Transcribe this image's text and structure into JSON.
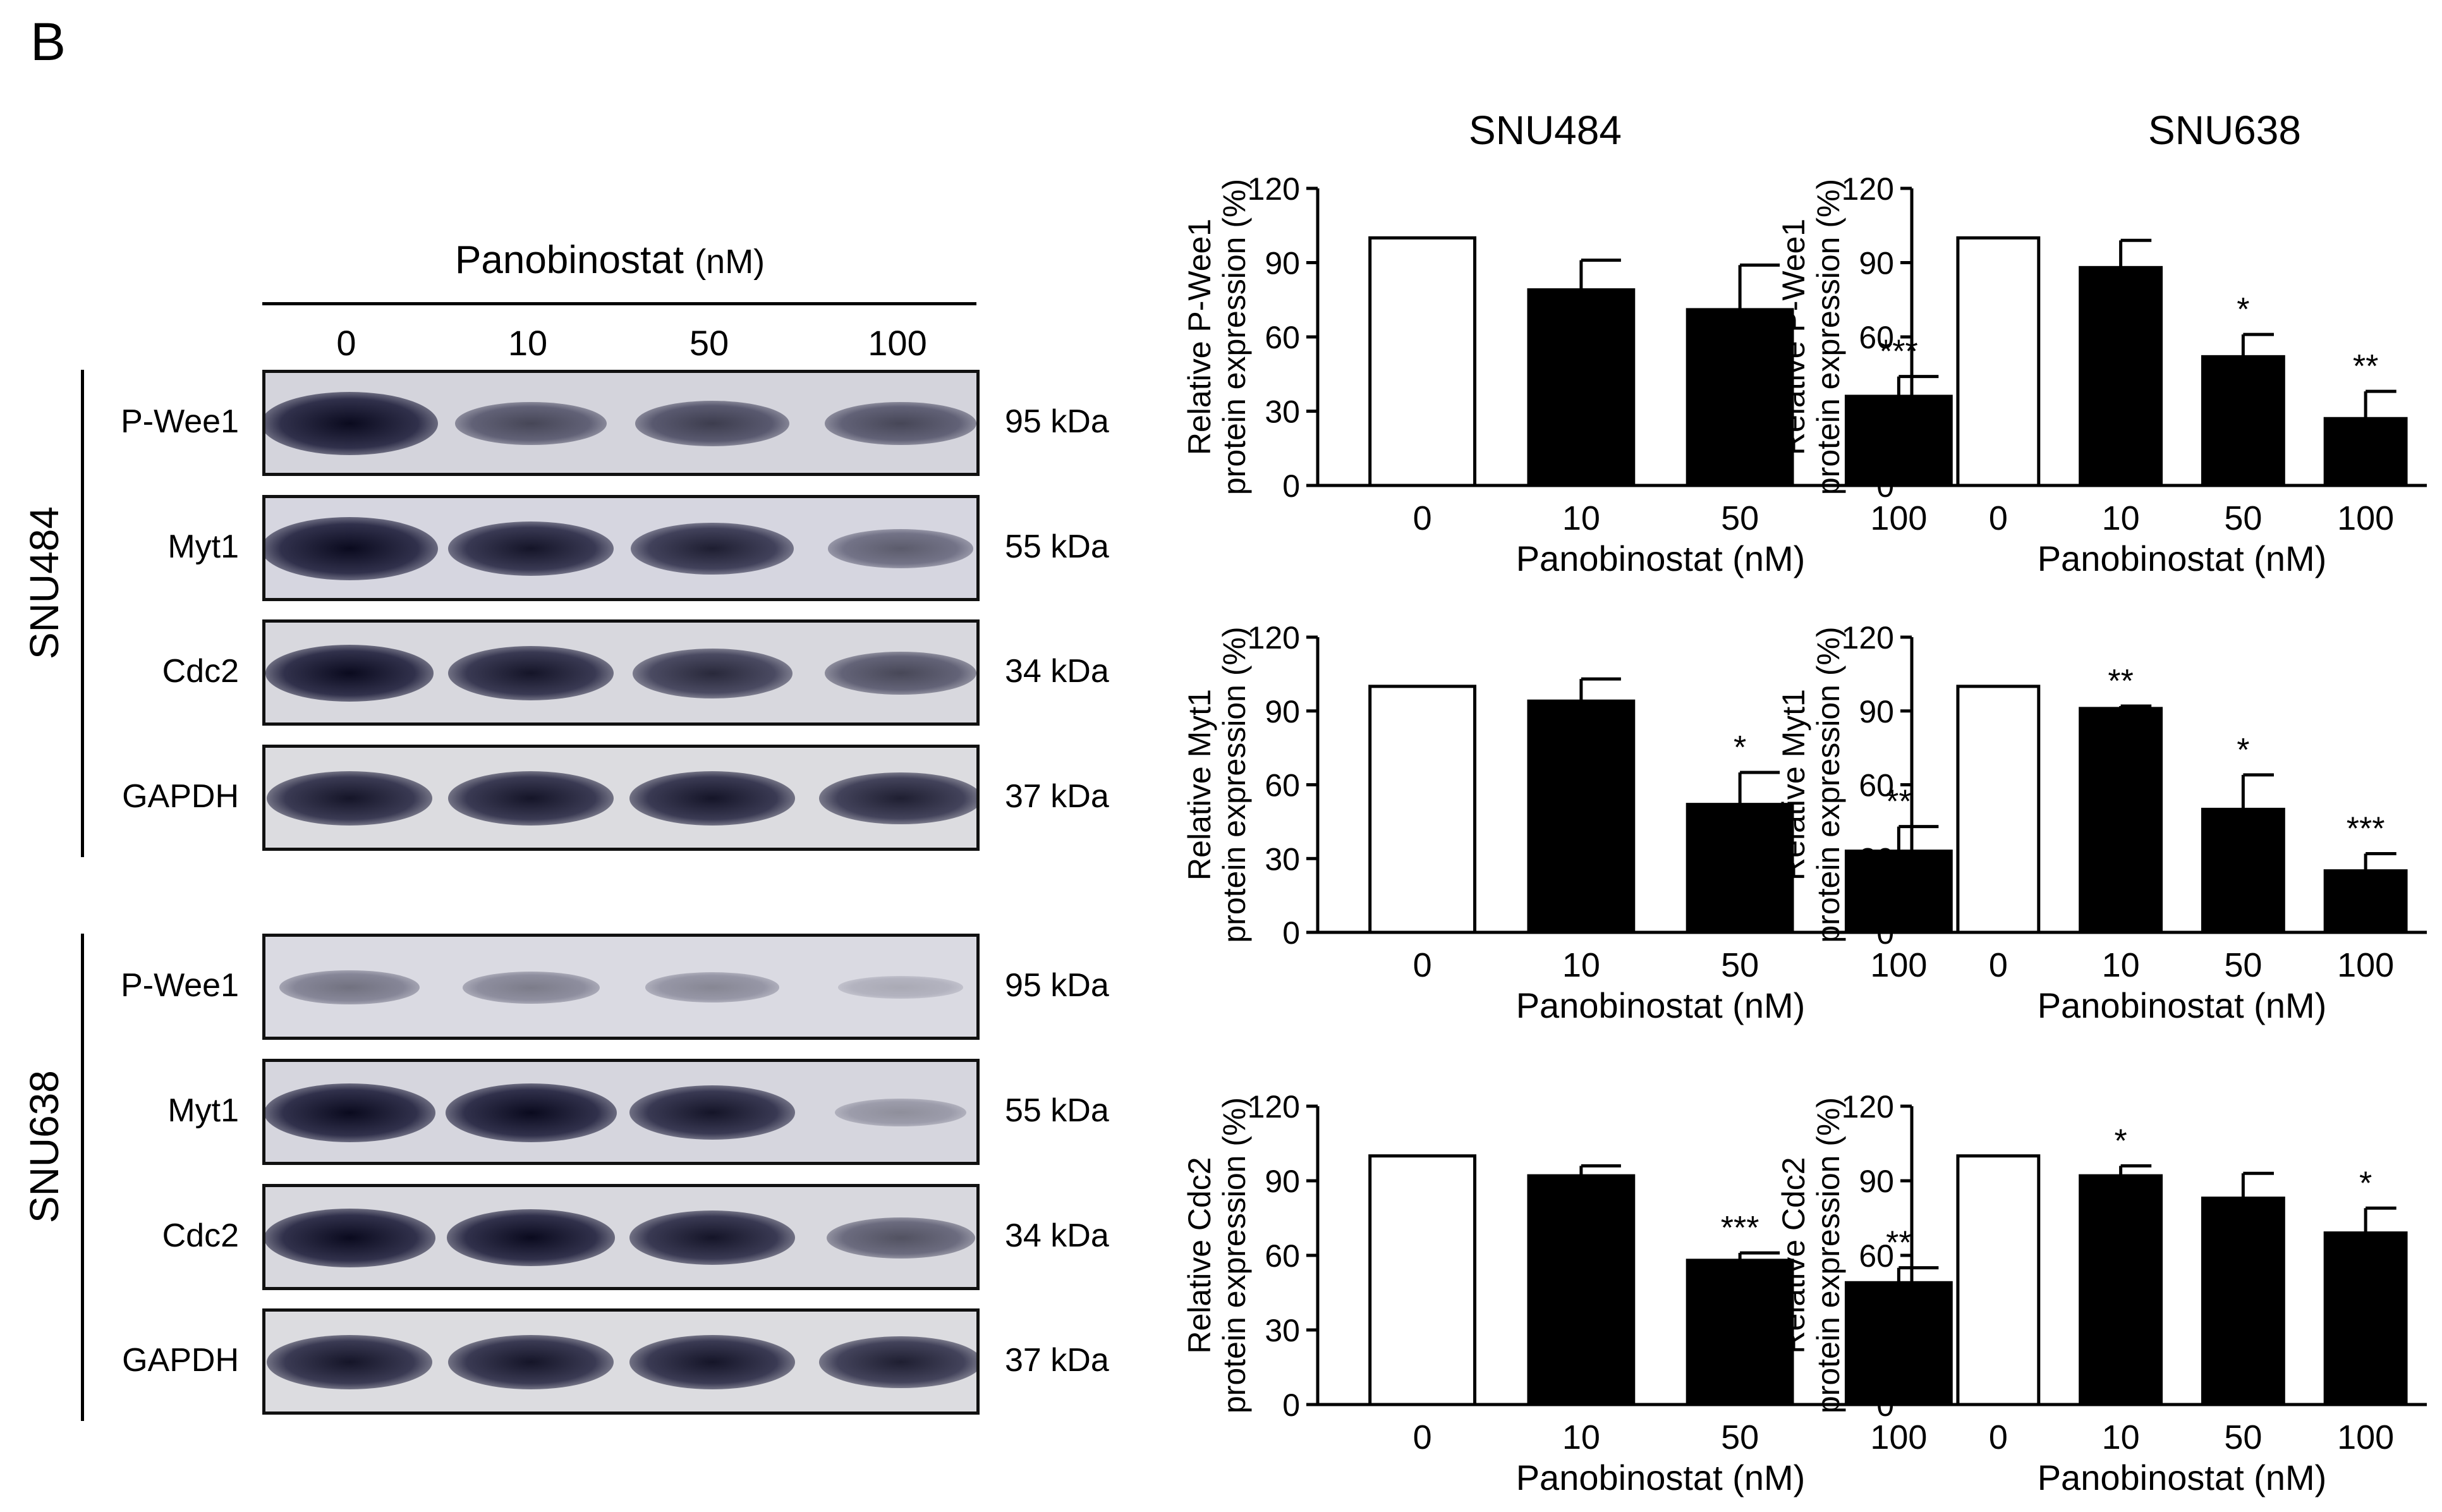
{
  "panel_label": "B",
  "blot": {
    "title": "Panobinostat",
    "title_unit": "(nM)",
    "lanes": [
      "0",
      "10",
      "50",
      "100"
    ],
    "groups": [
      {
        "cell_line": "SNU484",
        "rows": [
          {
            "protein": "P-Wee1",
            "size": "95 kDa",
            "intensity": [
              1.0,
              0.55,
              0.6,
              0.55
            ],
            "bg": "#d4d4dc"
          },
          {
            "protein": "Myt1",
            "size": "55 kDa",
            "intensity": [
              1.0,
              0.8,
              0.75,
              0.45
            ],
            "bg": "#d6d6e0"
          },
          {
            "protein": "Cdc2",
            "size": "34 kDa",
            "intensity": [
              0.85,
              0.8,
              0.7,
              0.55
            ],
            "bg": "#d8d8de"
          },
          {
            "protein": "GAPDH",
            "size": "37 kDa",
            "intensity": [
              0.8,
              0.8,
              0.8,
              0.75
            ],
            "bg": "#dcdce0"
          }
        ]
      },
      {
        "cell_line": "SNU638",
        "rows": [
          {
            "protein": "P-Wee1",
            "size": "95 kDa",
            "intensity": [
              0.35,
              0.3,
              0.25,
              0.08
            ],
            "bg": "#dadae2"
          },
          {
            "protein": "Myt1",
            "size": "55 kDa",
            "intensity": [
              0.9,
              0.9,
              0.8,
              0.2
            ],
            "bg": "#d6d6de"
          },
          {
            "protein": "Cdc2",
            "size": "34 kDa",
            "intensity": [
              0.9,
              0.85,
              0.8,
              0.5
            ],
            "bg": "#d8d8de"
          },
          {
            "protein": "GAPDH",
            "size": "37 kDa",
            "intensity": [
              0.8,
              0.8,
              0.8,
              0.75
            ],
            "bg": "#dcdce0"
          }
        ]
      }
    ]
  },
  "chart_data": [
    {
      "type": "bar",
      "column_title": "SNU484",
      "categories": [
        "0",
        "10",
        "50",
        "100"
      ],
      "values": [
        100,
        79,
        71,
        36
      ],
      "errors": [
        0,
        12,
        18,
        8
      ],
      "significance": [
        "",
        "",
        "",
        "***"
      ],
      "xlabel": "Panobinostat (nM)",
      "ylabel_line1": "Relative P-Wee1",
      "ylabel_line2": "protein expression (%)",
      "ylim": [
        0,
        120
      ],
      "yticks": [
        "0",
        "30",
        "60",
        "90",
        "120"
      ]
    },
    {
      "type": "bar",
      "column_title": "SNU638",
      "categories": [
        "0",
        "10",
        "50",
        "100"
      ],
      "values": [
        100,
        88,
        52,
        27
      ],
      "errors": [
        0,
        11,
        9,
        11
      ],
      "significance": [
        "",
        "",
        "*",
        "**"
      ],
      "xlabel": "Panobinostat (nM)",
      "ylabel_line1": "Relative P-Wee1",
      "ylabel_line2": "protein expression (%)",
      "ylim": [
        0,
        120
      ],
      "yticks": [
        "0",
        "30",
        "60",
        "90",
        "120"
      ]
    },
    {
      "type": "bar",
      "column_title": "",
      "categories": [
        "0",
        "10",
        "50",
        "100"
      ],
      "values": [
        100,
        94,
        52,
        33
      ],
      "errors": [
        0,
        9,
        13,
        10
      ],
      "significance": [
        "",
        "",
        "*",
        "**"
      ],
      "xlabel": "Panobinostat (nM)",
      "ylabel_line1": "Relative Myt1",
      "ylabel_line2": "protein expression (%)",
      "ylim": [
        0,
        120
      ],
      "yticks": [
        "0",
        "30",
        "60",
        "90",
        "120"
      ]
    },
    {
      "type": "bar",
      "column_title": "",
      "categories": [
        "0",
        "10",
        "50",
        "100"
      ],
      "values": [
        100,
        91,
        50,
        25
      ],
      "errors": [
        0,
        1,
        14,
        7
      ],
      "significance": [
        "",
        "**",
        "*",
        "***"
      ],
      "xlabel": "Panobinostat (nM)",
      "ylabel_line1": "Relative Myt1",
      "ylabel_line2": "protein expression (%)",
      "ylim": [
        0,
        120
      ],
      "yticks": [
        "0",
        "30",
        "60",
        "90",
        "120"
      ]
    },
    {
      "type": "bar",
      "column_title": "",
      "categories": [
        "0",
        "10",
        "50",
        "100"
      ],
      "values": [
        100,
        92,
        58,
        49
      ],
      "errors": [
        0,
        4,
        3,
        6
      ],
      "significance": [
        "",
        "",
        "***",
        "**"
      ],
      "xlabel": "Panobinostat (nM)",
      "ylabel_line1": "Relative Cdc2",
      "ylabel_line2": "protein expression (%)",
      "ylim": [
        0,
        120
      ],
      "yticks": [
        "0",
        "30",
        "60",
        "90",
        "120"
      ]
    },
    {
      "type": "bar",
      "column_title": "",
      "categories": [
        "0",
        "10",
        "50",
        "100"
      ],
      "values": [
        100,
        92,
        83,
        69
      ],
      "errors": [
        0,
        4,
        10,
        10
      ],
      "significance": [
        "",
        "*",
        "",
        "*"
      ],
      "xlabel": "Panobinostat (nM)",
      "ylabel_line1": "Relative Cdc2",
      "ylabel_line2": "protein expression (%)",
      "ylim": [
        0,
        120
      ],
      "yticks": [
        "0",
        "30",
        "60",
        "90",
        "120"
      ]
    }
  ]
}
